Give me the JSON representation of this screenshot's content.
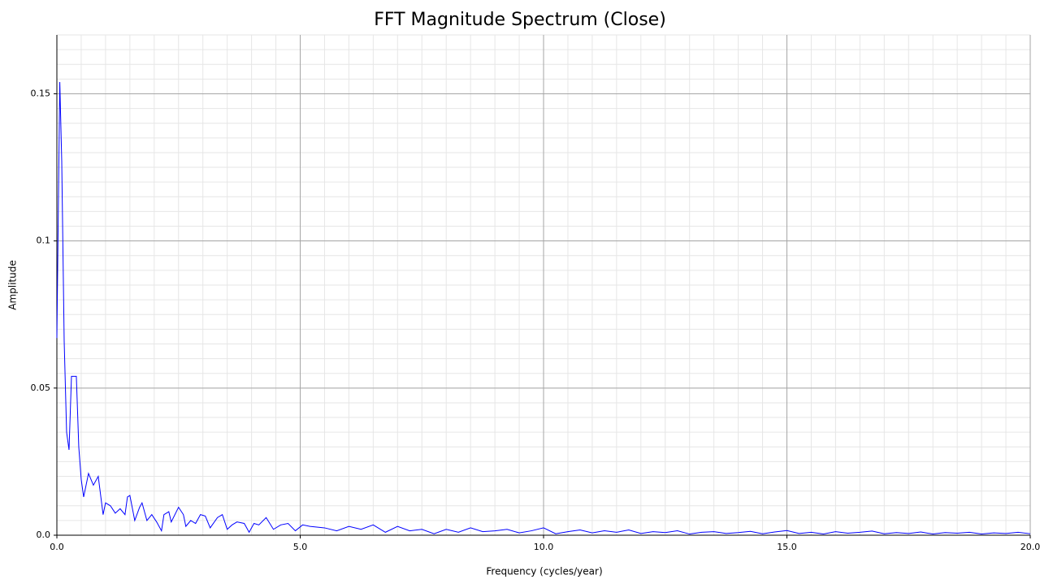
{
  "chart_data": {
    "type": "line",
    "title": "FFT Magnitude Spectrum (Close)",
    "x_label": "Frequency (cycles/year)",
    "y_label": "Amplitude",
    "xlim": [
      0,
      20
    ],
    "ylim": [
      0,
      0.17
    ],
    "xticks": [
      {
        "value": 0,
        "label": "0.0"
      },
      {
        "value": 5,
        "label": "5.0"
      },
      {
        "value": 10,
        "label": "10.0"
      },
      {
        "value": 15,
        "label": "15.0"
      },
      {
        "value": 20,
        "label": "20.0"
      }
    ],
    "yticks": [
      {
        "value": 0,
        "label": "0.0"
      },
      0.05,
      0.1,
      0.15
    ],
    "grid": true,
    "minor_grid": true,
    "series": [
      {
        "name": "Close",
        "color": "#0000ff",
        "x": [
          0,
          0.06,
          0.1,
          0.15,
          0.2,
          0.25,
          0.3,
          0.4,
          0.45,
          0.5,
          0.55,
          0.65,
          0.75,
          0.85,
          0.95,
          1.0,
          1.1,
          1.2,
          1.3,
          1.4,
          1.45,
          1.5,
          1.6,
          1.7,
          1.75,
          1.85,
          1.95,
          2.05,
          2.15,
          2.2,
          2.3,
          2.35,
          2.5,
          2.6,
          2.65,
          2.75,
          2.85,
          2.95,
          3.05,
          3.15,
          3.3,
          3.4,
          3.5,
          3.6,
          3.7,
          3.85,
          3.95,
          4.05,
          4.15,
          4.3,
          4.45,
          4.6,
          4.75,
          4.9,
          5.05,
          5.2,
          5.5,
          5.75,
          6.0,
          6.25,
          6.5,
          6.75,
          7.0,
          7.25,
          7.5,
          7.75,
          8.0,
          8.25,
          8.5,
          8.75,
          9.0,
          9.25,
          9.5,
          9.75,
          10.0,
          10.25,
          10.5,
          10.75,
          11.0,
          11.25,
          11.5,
          11.75,
          12.0,
          12.25,
          12.5,
          12.75,
          13.0,
          13.25,
          13.5,
          13.75,
          14.0,
          14.25,
          14.5,
          14.75,
          15.0,
          15.25,
          15.5,
          15.75,
          16.0,
          16.25,
          16.5,
          16.75,
          17.0,
          17.25,
          17.5,
          17.75,
          18.0,
          18.25,
          18.5,
          18.75,
          19.0,
          19.25,
          19.5,
          19.75,
          20.0
        ],
        "values": [
          0.067,
          0.154,
          0.127,
          0.066,
          0.035,
          0.029,
          0.054,
          0.054,
          0.03,
          0.019,
          0.013,
          0.021,
          0.017,
          0.02,
          0.007,
          0.011,
          0.01,
          0.0075,
          0.009,
          0.007,
          0.013,
          0.0135,
          0.005,
          0.0095,
          0.011,
          0.005,
          0.007,
          0.0045,
          0.0015,
          0.007,
          0.008,
          0.0045,
          0.0095,
          0.007,
          0.003,
          0.005,
          0.004,
          0.007,
          0.0065,
          0.0025,
          0.006,
          0.007,
          0.002,
          0.0035,
          0.0045,
          0.004,
          0.001,
          0.004,
          0.0035,
          0.006,
          0.002,
          0.0035,
          0.004,
          0.0015,
          0.0035,
          0.003,
          0.0025,
          0.0015,
          0.003,
          0.002,
          0.0035,
          0.001,
          0.003,
          0.0015,
          0.002,
          0.0005,
          0.002,
          0.001,
          0.0025,
          0.0012,
          0.0015,
          0.002,
          0.0008,
          0.0015,
          0.0025,
          0.0005,
          0.0012,
          0.0018,
          0.0008,
          0.0015,
          0.001,
          0.0018,
          0.0006,
          0.0012,
          0.0009,
          0.0015,
          0.0004,
          0.001,
          0.0012,
          0.0006,
          0.0009,
          0.0013,
          0.0005,
          0.0011,
          0.0016,
          0.0006,
          0.001,
          0.0004,
          0.0012,
          0.0007,
          0.001,
          0.0014,
          0.0005,
          0.0009,
          0.0006,
          0.0011,
          0.0004,
          0.0009,
          0.0007,
          0.001,
          0.0004,
          0.0008,
          0.0006,
          0.001,
          0.0005
        ]
      }
    ]
  }
}
